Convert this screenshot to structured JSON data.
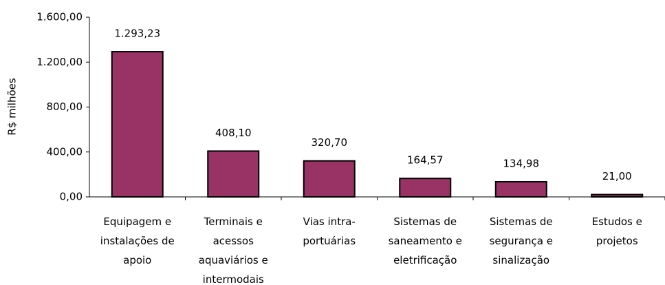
{
  "chart_data": {
    "type": "bar",
    "y_label": "R$ milhões",
    "categories": [
      "Equipagem e instalações de apoio",
      "Terminais e acessos aquaviários e intermodais",
      "Vias intra-portuárias",
      "Sistemas de saneamento e eletrificação",
      "Sistemas de segurança e sinalização",
      "Estudos e projetos"
    ],
    "values": [
      1293.23,
      408.1,
      320.7,
      164.57,
      134.98,
      21.0
    ],
    "value_labels": [
      "1.293,23",
      "408,10",
      "320,70",
      "164,57",
      "134,98",
      "21,00"
    ],
    "color": "#993366",
    "ylim": [
      0,
      1600
    ],
    "yticks": [
      {
        "value": 0,
        "label": "0,00"
      },
      {
        "value": 400,
        "label": "400,00"
      },
      {
        "value": 800,
        "label": "800,00"
      },
      {
        "value": 1200,
        "label": "1.200,00"
      },
      {
        "value": 1600,
        "label": "1.600,00"
      }
    ],
    "grid": false
  }
}
